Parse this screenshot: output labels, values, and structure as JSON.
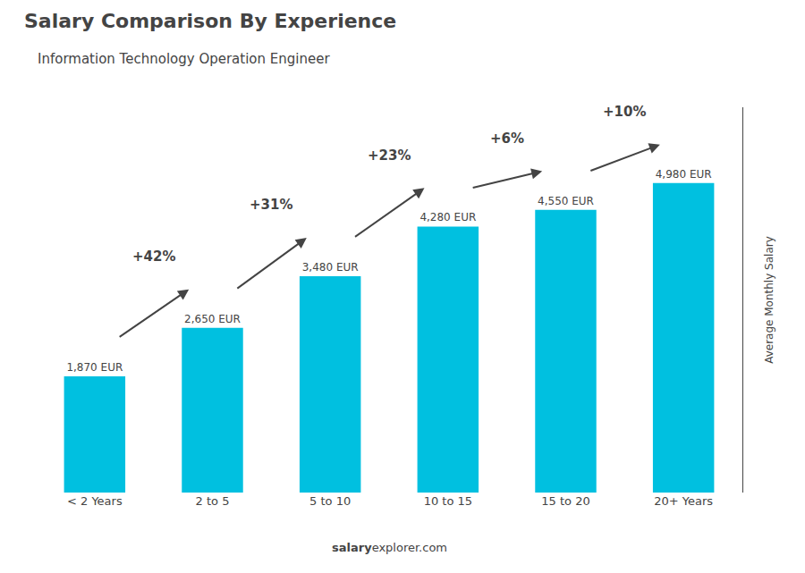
{
  "chart_data": {
    "type": "bar",
    "title": "Salary Comparison By Experience",
    "subtitle": "Information Technology Operation Engineer",
    "ylabel": "Average Monthly Salary",
    "categories": [
      "< 2 Years",
      "2 to 5",
      "5 to 10",
      "10 to 15",
      "15 to 20",
      "20+ Years"
    ],
    "values": [
      1870,
      2650,
      3480,
      4280,
      4550,
      4980
    ],
    "value_labels": [
      "1,870 EUR",
      "2,650 EUR",
      "3,480 EUR",
      "4,280 EUR",
      "4,550 EUR",
      "4,980 EUR"
    ],
    "data_labels": true,
    "color": "#00c0e0",
    "ylim": [
      0,
      6200
    ],
    "tick_labels": "x",
    "grid": false,
    "annotations": [
      {
        "from": "< 2 Years",
        "to": "2 to 5",
        "text": "+42%"
      },
      {
        "from": "2 to 5",
        "to": "5 to 10",
        "text": "+31%"
      },
      {
        "from": "5 to 10",
        "to": "10 to 15",
        "text": "+23%"
      },
      {
        "from": "10 to 15",
        "to": "15 to 20",
        "text": "+6%"
      },
      {
        "from": "15 to 20",
        "to": "20+ Years",
        "text": "+10%"
      },
      {
        "text": "salary"
      },
      {
        "text": "explorer.com"
      }
    ]
  }
}
